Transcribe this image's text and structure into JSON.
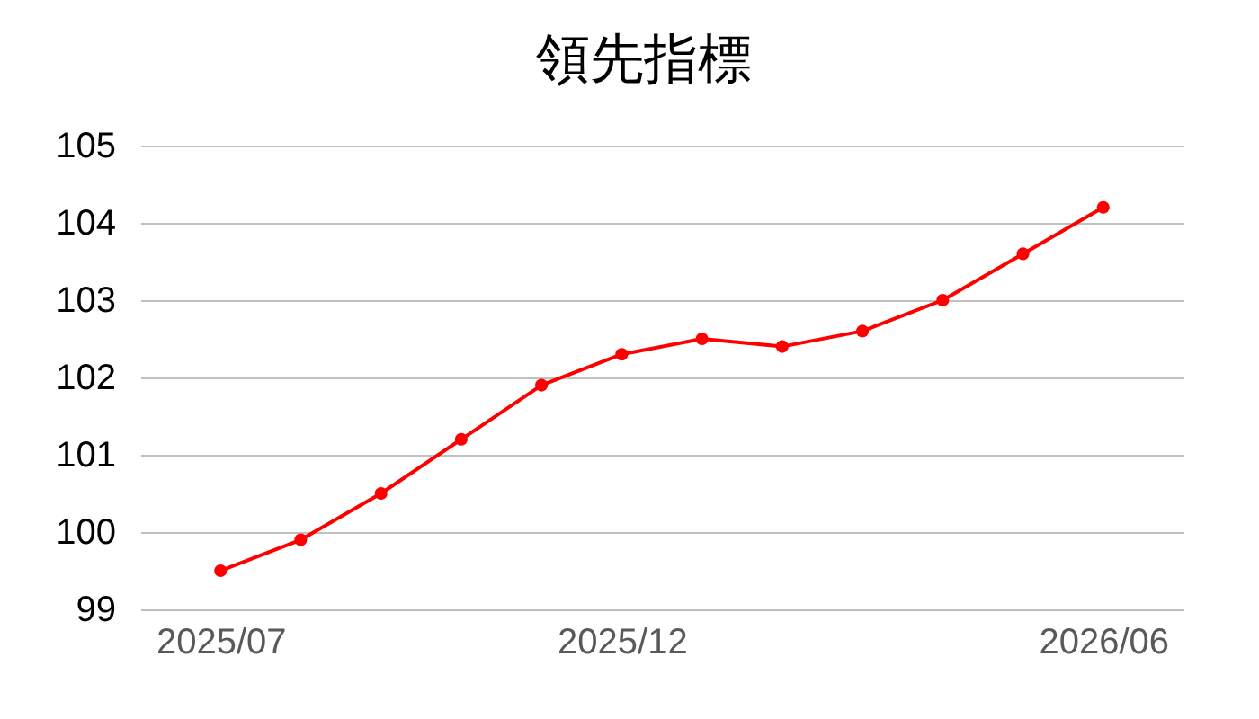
{
  "chart_data": {
    "type": "line",
    "title": "領先指標",
    "categories": [
      "2025/07",
      null,
      null,
      null,
      null,
      "2025/12",
      null,
      null,
      null,
      null,
      null,
      "2026/06"
    ],
    "series": [
      {
        "color": "#ff0000",
        "values": [
          99.5,
          99.9,
          100.5,
          101.2,
          101.9,
          102.3,
          102.5,
          102.4,
          102.6,
          103.0,
          103.6,
          104.2
        ]
      }
    ],
    "ylim": [
      99,
      105
    ],
    "yticks": [
      99,
      100,
      101,
      102,
      103,
      104,
      105
    ],
    "grid": "y",
    "marker": "circle",
    "line_style": "solid"
  }
}
